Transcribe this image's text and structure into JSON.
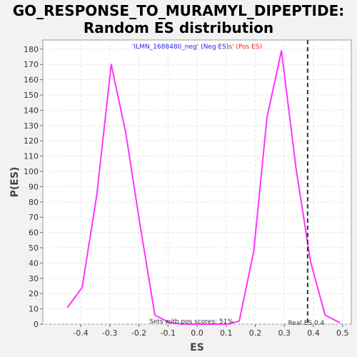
{
  "chart_data": {
    "type": "line",
    "title_line1": "GO_RESPONSE_TO_MURAMYL_DIPEPTIDE:",
    "title_line2": "Random ES distribution",
    "xlabel": "ES",
    "ylabel": "P(ES)",
    "xlim": [
      -0.53,
      0.53
    ],
    "ylim": [
      0,
      186
    ],
    "x_ticks": [
      -0.4,
      -0.3,
      -0.2,
      -0.1,
      0.0,
      0.1,
      0.2,
      0.3,
      0.4,
      0.5
    ],
    "x_tick_labels": [
      "-0.4",
      "-0.3",
      "-0.2",
      "-0.1",
      "0.0",
      "0.1",
      "0.2",
      "0.3",
      "0.4",
      "0.5"
    ],
    "y_ticks": [
      0,
      10,
      20,
      30,
      40,
      50,
      60,
      70,
      80,
      90,
      100,
      110,
      120,
      130,
      140,
      150,
      160,
      170,
      180
    ],
    "y_tick_labels": [
      "0",
      "10",
      "20",
      "30",
      "40",
      "50",
      "60",
      "70",
      "80",
      "90",
      "100",
      "110",
      "120",
      "130",
      "140",
      "150",
      "160",
      "170",
      "180"
    ],
    "series": [
      {
        "name": "Random ES distribution",
        "color": "#ff33ff",
        "x": [
          -0.445,
          -0.395,
          -0.345,
          -0.295,
          -0.245,
          -0.195,
          -0.145,
          -0.095,
          -0.045,
          0.005,
          0.055,
          0.105,
          0.145,
          0.195,
          0.24,
          0.29,
          0.34,
          0.39,
          0.44,
          0.49
        ],
        "y": [
          11,
          24,
          84,
          170,
          125,
          64,
          6,
          1,
          0,
          0,
          0,
          0,
          2,
          48,
          135,
          179,
          102,
          41,
          6,
          1
        ]
      }
    ],
    "real_es": {
      "value": 0.38,
      "label": "Real ES 0.4"
    },
    "legend": {
      "neg_text": "'ILMN_1688480_neg' (Neg ES)",
      "pos_text": "s' (Pos ES)",
      "neg_color": "#2222ee",
      "pos_color": "#ee2222"
    },
    "footer_text": "Sets with pos scores: 51%",
    "grid": true
  }
}
